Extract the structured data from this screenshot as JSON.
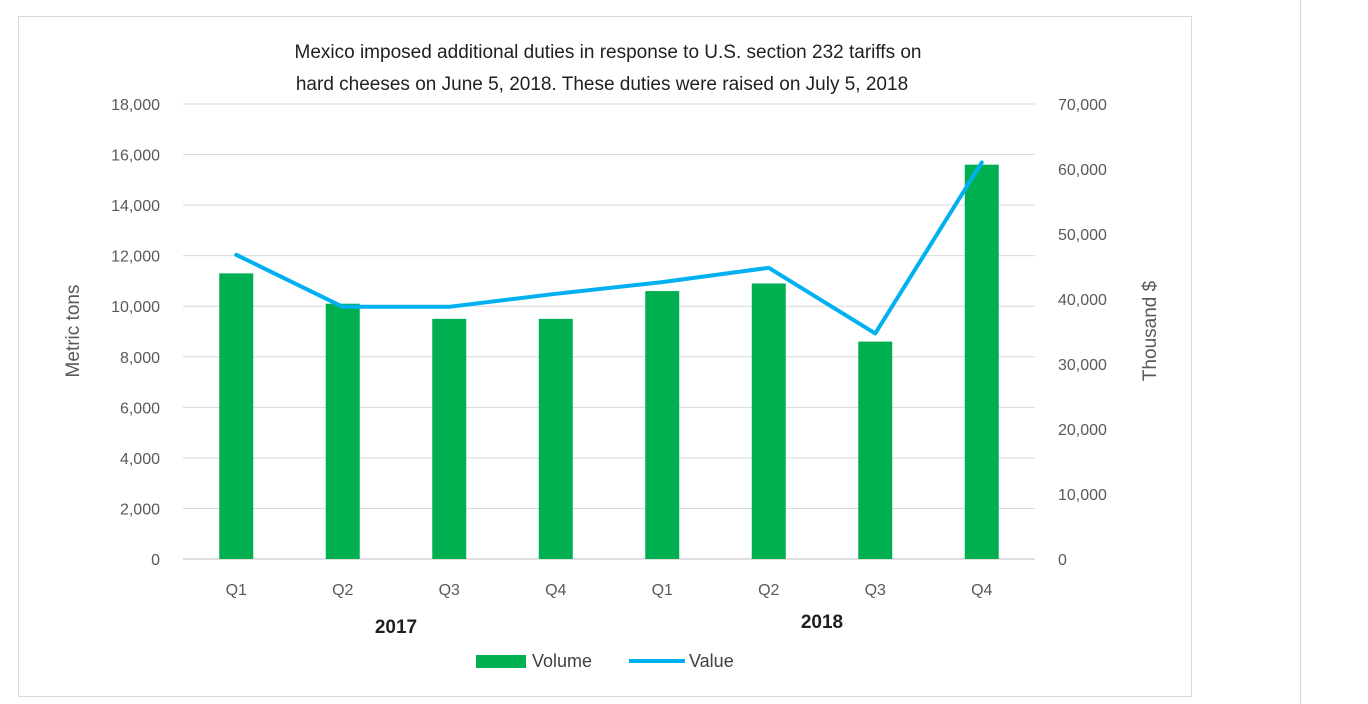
{
  "chart_data": {
    "type": "bar+line",
    "title_lines": [
      "Mexico imposed additional duties in response to U.S. section 232 tariffs on",
      "hard cheeses on June 5, 2018. These duties were raised on July 5, 2018"
    ],
    "categories": [
      "Q1",
      "Q2",
      "Q3",
      "Q4",
      "Q1",
      "Q2",
      "Q3",
      "Q4"
    ],
    "year_groups": [
      {
        "label": "2017",
        "from": 0,
        "to": 3
      },
      {
        "label": "2018",
        "from": 4,
        "to": 7
      }
    ],
    "series": [
      {
        "name": "Volume",
        "type": "bar",
        "axis": "left",
        "color": "#00b050",
        "values": [
          11300,
          10100,
          9500,
          9500,
          10600,
          10900,
          8600,
          15600
        ]
      },
      {
        "name": "Value",
        "type": "line",
        "axis": "right",
        "color": "#00b0f0",
        "values": [
          46800,
          38800,
          38800,
          40800,
          42600,
          44800,
          34700,
          61000
        ]
      }
    ],
    "ylabel_left": "Metric tons",
    "ylabel_right": "Thousand $",
    "ylim_left": [
      0,
      18000
    ],
    "ylim_right": [
      0,
      70000
    ],
    "yticks_left": [
      "0",
      "2,000",
      "4,000",
      "6,000",
      "8,000",
      "10,000",
      "12,000",
      "14,000",
      "16,000",
      "18,000"
    ],
    "yticks_right": [
      "0",
      "10,000",
      "20,000",
      "30,000",
      "40,000",
      "50,000",
      "60,000",
      "70,000"
    ],
    "grid": true,
    "legend_position": "bottom-center"
  }
}
